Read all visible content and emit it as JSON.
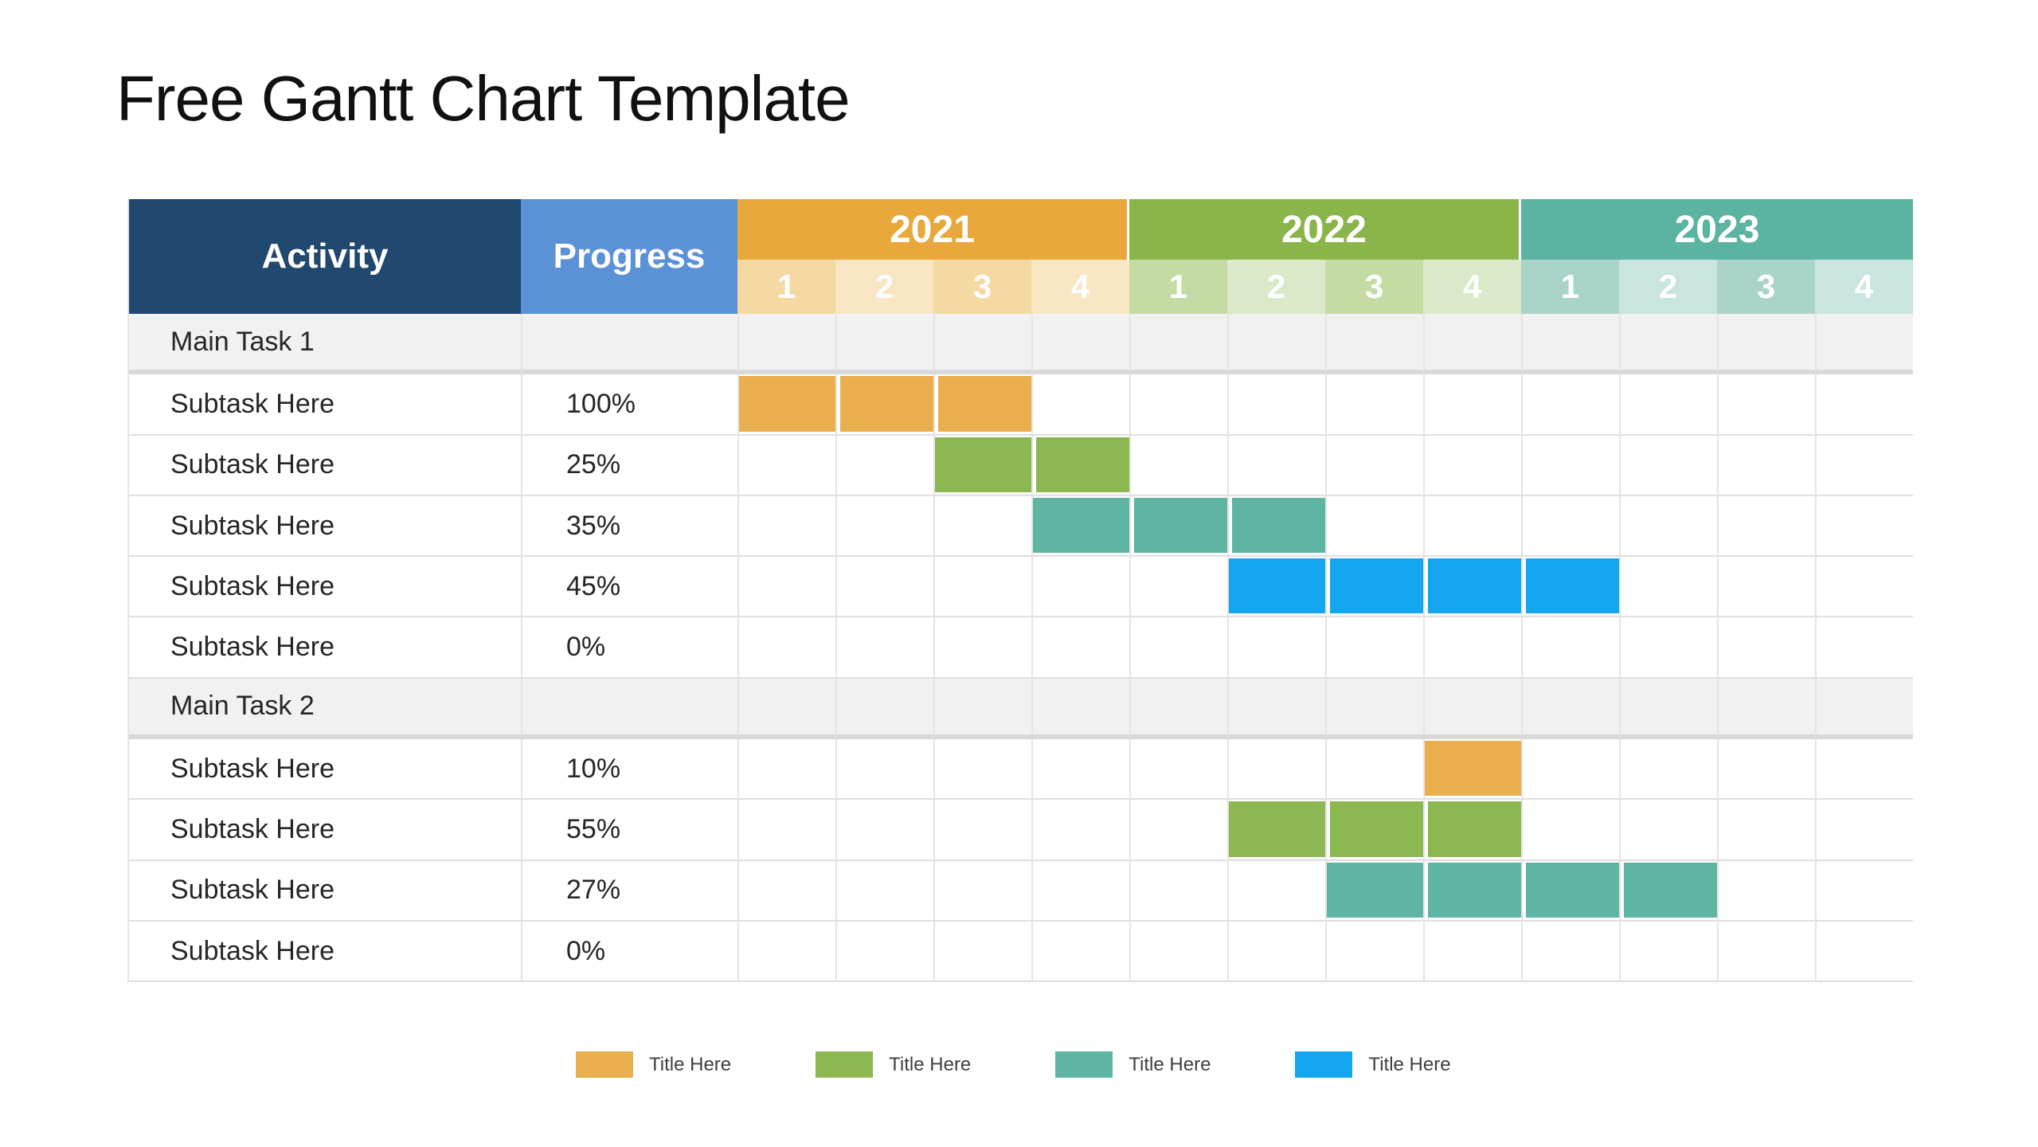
{
  "title": "Free Gantt Chart Template",
  "colors": {
    "header_navy": "#21486E",
    "header_progress_blue": "#5B91D5",
    "grid_line": "#E4E4E4",
    "row_border": "#DFDFDF",
    "main_row_bg": "#F1F1F2",
    "body_text": "#262626",
    "bar_orange": "#E9AF4E",
    "bar_green": "#8CB852",
    "bar_teal": "#5FB5A4",
    "bar_blue": "#14A7F0"
  },
  "table": {
    "columns": {
      "activity_label": "Activity",
      "progress_label": "Progress"
    },
    "years": [
      {
        "label": "2021",
        "color": "#E9A83C",
        "tint_strong": "#F5D9A3",
        "tint_light": "#F9E6C5"
      },
      {
        "label": "2022",
        "color": "#8AB54A",
        "tint_strong": "#C4DCA4",
        "tint_light": "#DBE9C8"
      },
      {
        "label": "2023",
        "color": "#5BB3A1",
        "tint_strong": "#AAD4CA",
        "tint_light": "#CAE4DF"
      }
    ],
    "quarter_labels": [
      "1",
      "2",
      "3",
      "4",
      "1",
      "2",
      "3",
      "4",
      "1",
      "2",
      "3",
      "4"
    ],
    "rows": [
      {
        "type": "main",
        "activity": "Main Task 1",
        "progress": ""
      },
      {
        "type": "sub",
        "activity": "Subtask Here",
        "progress": "100%",
        "bar": {
          "start": 1,
          "span": 3,
          "color": "#E9AF4E"
        }
      },
      {
        "type": "sub",
        "activity": "Subtask Here",
        "progress": "25%",
        "bar": {
          "start": 3,
          "span": 2,
          "color": "#8CB852"
        }
      },
      {
        "type": "sub",
        "activity": "Subtask Here",
        "progress": "35%",
        "bar": {
          "start": 4,
          "span": 3,
          "color": "#5FB5A4"
        }
      },
      {
        "type": "sub",
        "activity": "Subtask Here",
        "progress": "45%",
        "bar": {
          "start": 6,
          "span": 4,
          "color": "#14A7F0"
        }
      },
      {
        "type": "sub",
        "activity": "Subtask Here",
        "progress": "0%"
      },
      {
        "type": "main",
        "activity": "Main Task 2",
        "progress": ""
      },
      {
        "type": "sub",
        "activity": "Subtask Here",
        "progress": "10%",
        "bar": {
          "start": 8,
          "span": 1,
          "color": "#E9AF4E"
        }
      },
      {
        "type": "sub",
        "activity": "Subtask Here",
        "progress": "55%",
        "bar": {
          "start": 6,
          "span": 3,
          "color": "#8CB852"
        }
      },
      {
        "type": "sub",
        "activity": "Subtask Here",
        "progress": "27%",
        "bar": {
          "start": 7,
          "span": 4,
          "color": "#5FB5A4"
        }
      },
      {
        "type": "sub",
        "activity": "Subtask Here",
        "progress": "0%"
      }
    ]
  },
  "legend": [
    {
      "label": "Title Here",
      "color": "#E9AF4E"
    },
    {
      "label": "Title Here",
      "color": "#8CB852"
    },
    {
      "label": "Title Here",
      "color": "#5FB5A4"
    },
    {
      "label": "Title Here",
      "color": "#14A7F0"
    }
  ],
  "chart_data": {
    "type": "table",
    "title": "Free Gantt Chart Template",
    "timeline_years": [
      "2021",
      "2022",
      "2023"
    ],
    "quarters_per_year": 4,
    "columns": [
      "Activity",
      "Progress",
      "2021 Q1-Q4",
      "2022 Q1-Q4",
      "2023 Q1-Q4"
    ],
    "tasks": [
      {
        "group": "Main Task 1",
        "name": "Subtask Here",
        "progress_pct": 100,
        "start": "2021-Q1",
        "end": "2021-Q3",
        "color_name": "orange"
      },
      {
        "group": "Main Task 1",
        "name": "Subtask Here",
        "progress_pct": 25,
        "start": "2021-Q3",
        "end": "2021-Q4",
        "color_name": "green"
      },
      {
        "group": "Main Task 1",
        "name": "Subtask Here",
        "progress_pct": 35,
        "start": "2021-Q4",
        "end": "2022-Q2",
        "color_name": "teal"
      },
      {
        "group": "Main Task 1",
        "name": "Subtask Here",
        "progress_pct": 45,
        "start": "2022-Q2",
        "end": "2023-Q1",
        "color_name": "blue"
      },
      {
        "group": "Main Task 1",
        "name": "Subtask Here",
        "progress_pct": 0,
        "start": null,
        "end": null,
        "color_name": null
      },
      {
        "group": "Main Task 2",
        "name": "Subtask Here",
        "progress_pct": 10,
        "start": "2022-Q4",
        "end": "2022-Q4",
        "color_name": "orange"
      },
      {
        "group": "Main Task 2",
        "name": "Subtask Here",
        "progress_pct": 55,
        "start": "2022-Q2",
        "end": "2022-Q4",
        "color_name": "green"
      },
      {
        "group": "Main Task 2",
        "name": "Subtask Here",
        "progress_pct": 27,
        "start": "2022-Q3",
        "end": "2023-Q2",
        "color_name": "teal"
      },
      {
        "group": "Main Task 2",
        "name": "Subtask Here",
        "progress_pct": 0,
        "start": null,
        "end": null,
        "color_name": null
      }
    ],
    "legend_entries": [
      "Title Here",
      "Title Here",
      "Title Here",
      "Title Here"
    ]
  }
}
